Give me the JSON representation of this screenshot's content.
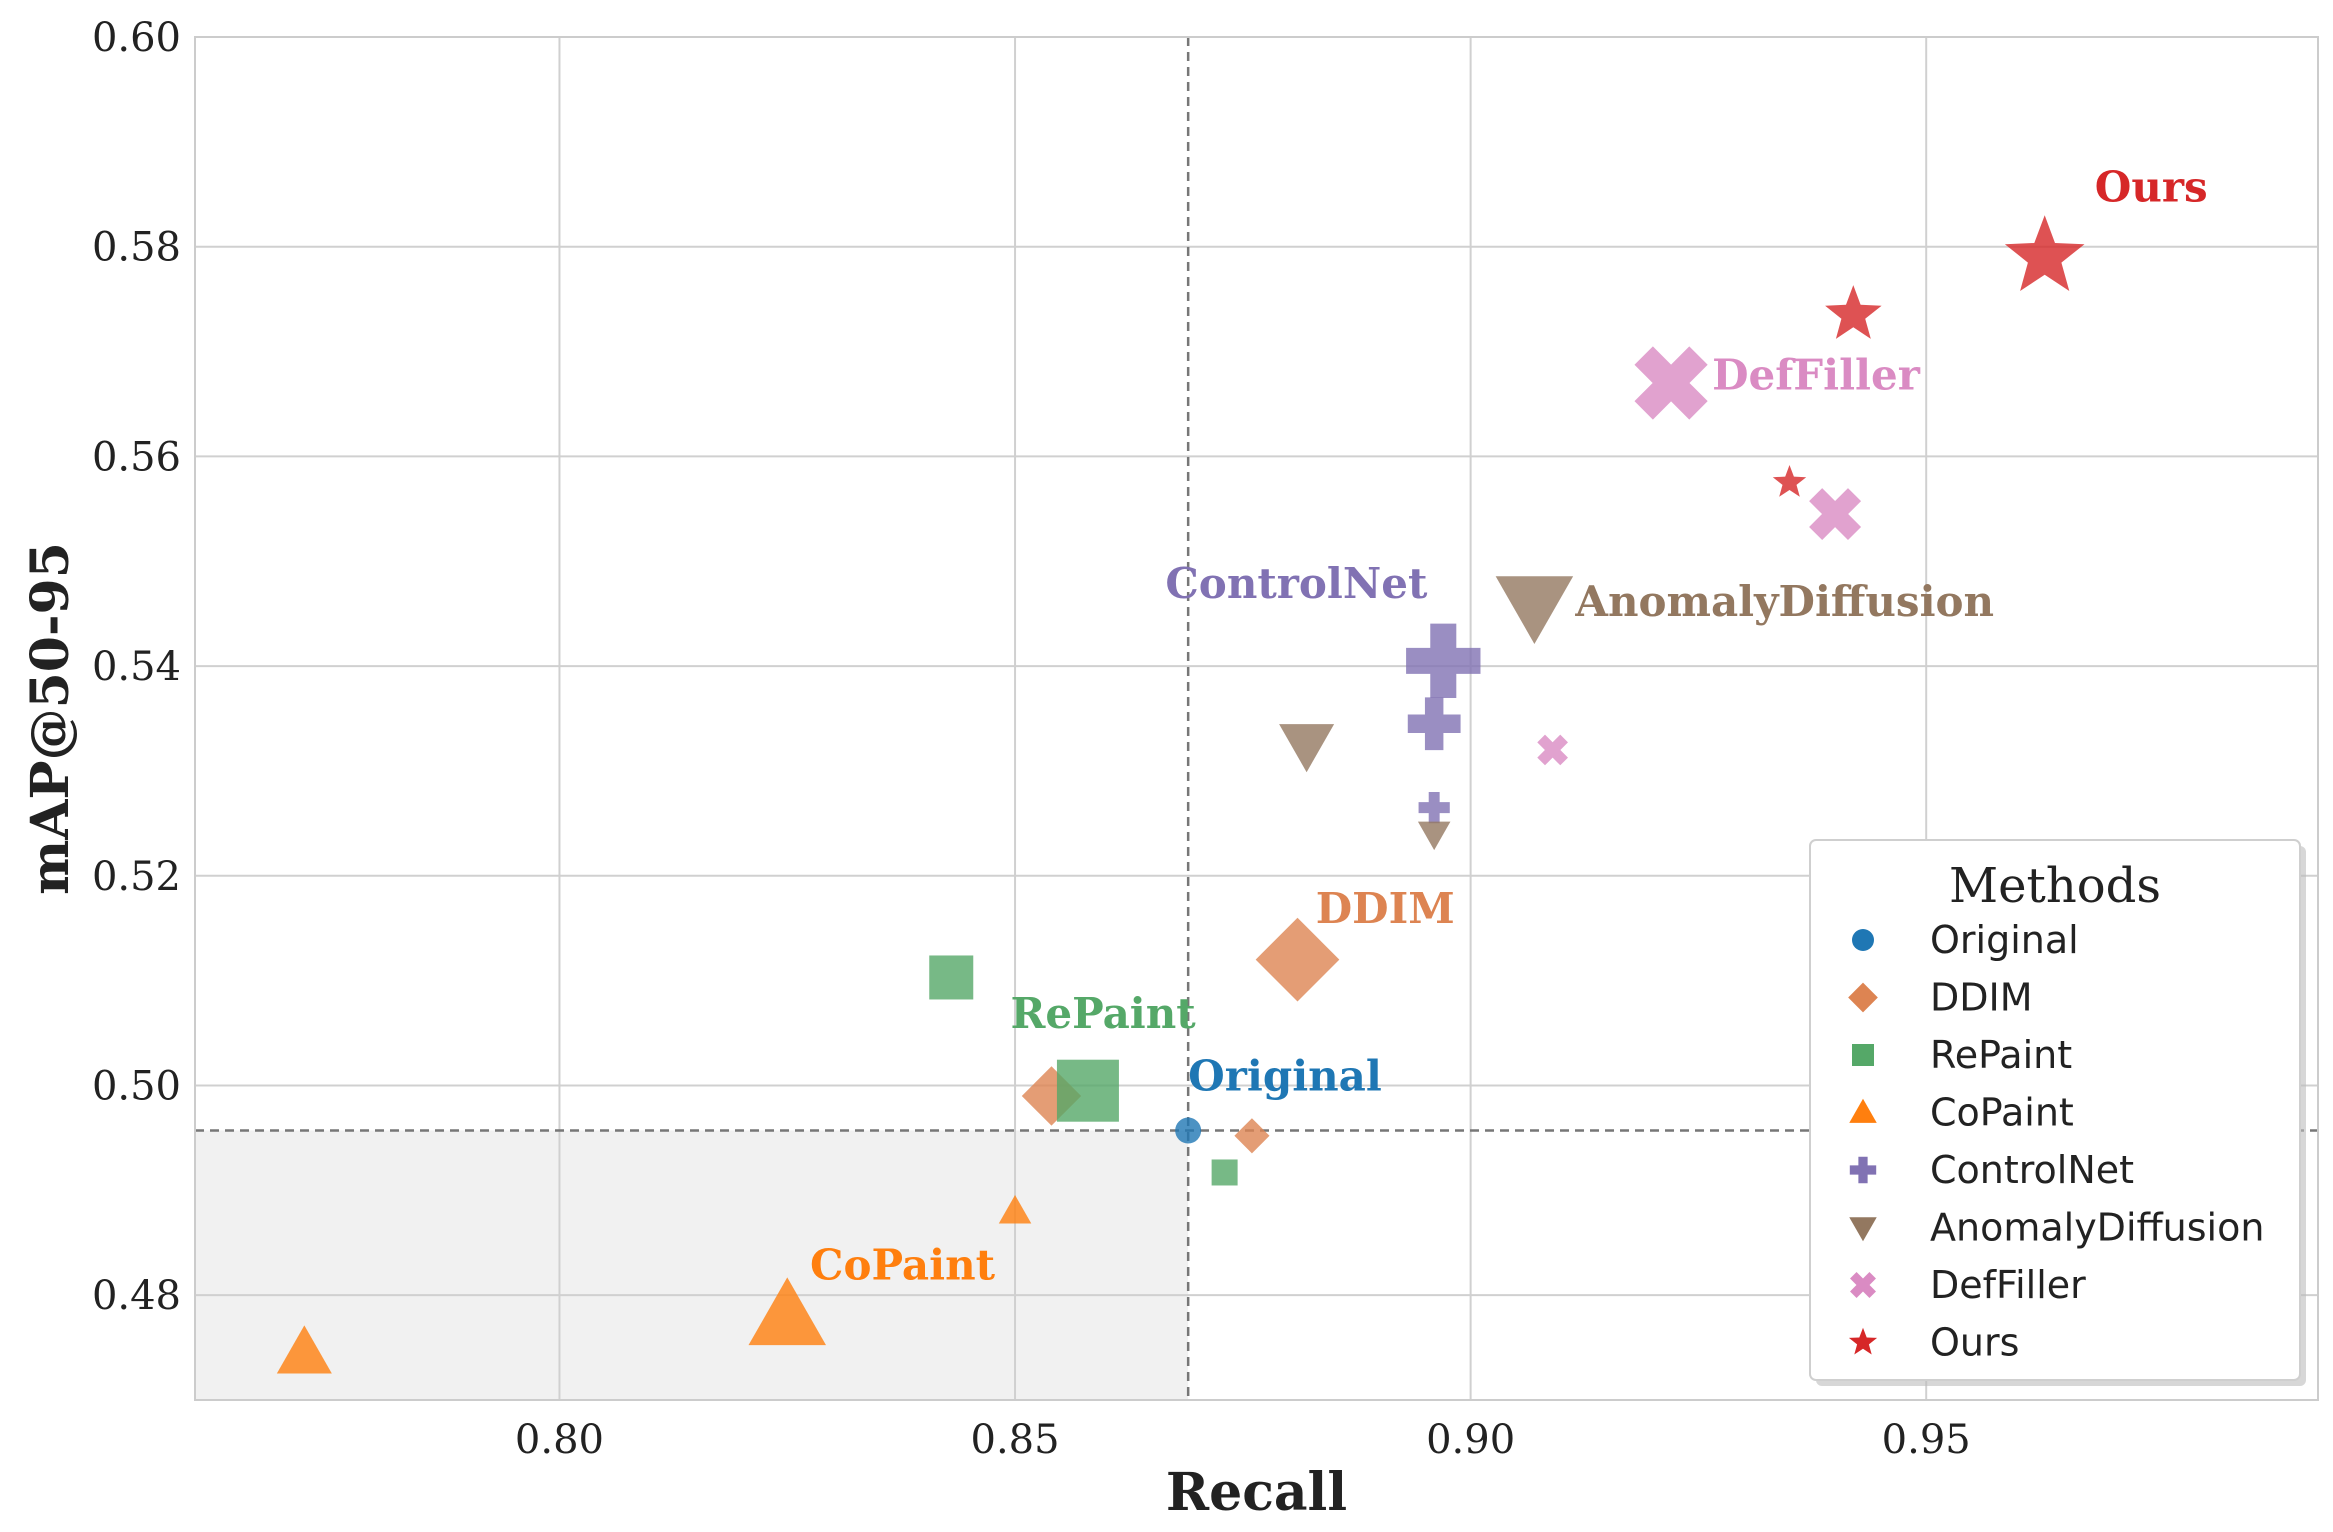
{
  "chart_data": {
    "type": "scatter",
    "xlabel": "Recall",
    "ylabel": "mAP@50-95",
    "xlim": [
      0.76,
      0.993
    ],
    "ylim": [
      0.47,
      0.6
    ],
    "xticks": [
      0.8,
      0.85,
      0.9,
      0.95
    ],
    "yticks": [
      0.48,
      0.5,
      0.52,
      0.54,
      0.56,
      0.58,
      0.6
    ],
    "x_tick_labels": [
      "0.80",
      "0.85",
      "0.90",
      "0.95"
    ],
    "y_tick_labels": [
      "0.48",
      "0.50",
      "0.52",
      "0.54",
      "0.56",
      "0.58",
      "0.60"
    ],
    "grid": true,
    "reference_lines": {
      "x": 0.869,
      "y": 0.4957
    },
    "shaded_region": "below-left of reference point",
    "legend": {
      "title": "Methods",
      "position": "lower-right"
    },
    "series": [
      {
        "name": "Original",
        "marker": "circle",
        "color": "#1f77b4",
        "points": [
          {
            "x": 0.869,
            "y": 0.4957,
            "size": "small"
          }
        ]
      },
      {
        "name": "DDIM",
        "marker": "diamond",
        "color": "#dd8452",
        "points": [
          {
            "x": 0.854,
            "y": 0.499,
            "size": "medium"
          },
          {
            "x": 0.876,
            "y": 0.4952,
            "size": "small"
          },
          {
            "x": 0.881,
            "y": 0.512,
            "size": "large"
          }
        ]
      },
      {
        "name": "RePaint",
        "marker": "square",
        "color": "#55a868",
        "points": [
          {
            "x": 0.843,
            "y": 0.5103,
            "size": "medium"
          },
          {
            "x": 0.858,
            "y": 0.4995,
            "size": "large"
          },
          {
            "x": 0.873,
            "y": 0.4917,
            "size": "small"
          }
        ]
      },
      {
        "name": "CoPaint",
        "marker": "triangle-up",
        "color": "#ff7f0e",
        "points": [
          {
            "x": 0.772,
            "y": 0.4745,
            "size": "medium"
          },
          {
            "x": 0.825,
            "y": 0.478,
            "size": "large"
          },
          {
            "x": 0.85,
            "y": 0.488,
            "size": "small"
          }
        ]
      },
      {
        "name": "ControlNet",
        "marker": "plus",
        "color": "#8172b3",
        "points": [
          {
            "x": 0.896,
            "y": 0.5265,
            "size": "small"
          },
          {
            "x": 0.896,
            "y": 0.5345,
            "size": "medium"
          },
          {
            "x": 0.897,
            "y": 0.5405,
            "size": "large"
          }
        ]
      },
      {
        "name": "AnomalyDiffusion",
        "marker": "triangle-down",
        "color": "#937860",
        "points": [
          {
            "x": 0.896,
            "y": 0.524,
            "size": "small"
          },
          {
            "x": 0.882,
            "y": 0.5325,
            "size": "medium"
          },
          {
            "x": 0.907,
            "y": 0.5458,
            "size": "large"
          }
        ]
      },
      {
        "name": "DefFiller",
        "marker": "x",
        "color": "#da8bc3",
        "points": [
          {
            "x": 0.909,
            "y": 0.532,
            "size": "small"
          },
          {
            "x": 0.94,
            "y": 0.5545,
            "size": "medium"
          },
          {
            "x": 0.922,
            "y": 0.567,
            "size": "large"
          }
        ]
      },
      {
        "name": "Ours",
        "marker": "star",
        "color": "#d62728",
        "points": [
          {
            "x": 0.935,
            "y": 0.5575,
            "size": "small"
          },
          {
            "x": 0.942,
            "y": 0.5735,
            "size": "medium"
          },
          {
            "x": 0.963,
            "y": 0.579,
            "size": "large"
          }
        ]
      }
    ],
    "annotations": [
      {
        "text": "Original",
        "x": 0.869,
        "y": 0.4995,
        "color": "#1f77b4"
      },
      {
        "text": "DDIM",
        "x": 0.883,
        "y": 0.5155,
        "color": "#dd8452"
      },
      {
        "text": "RePaint",
        "x": 0.8495,
        "y": 0.5055,
        "color": "#55a868"
      },
      {
        "text": "CoPaint",
        "x": 0.8275,
        "y": 0.4815,
        "color": "#ff7f0e"
      },
      {
        "text": "ControlNet",
        "x": 0.8665,
        "y": 0.5465,
        "color": "#8172b3"
      },
      {
        "text": "AnomalyDiffusion",
        "x": 0.9115,
        "y": 0.5448,
        "color": "#937860"
      },
      {
        "text": "DefFiller",
        "x": 0.9265,
        "y": 0.5664,
        "color": "#da8bc3"
      },
      {
        "text": "Ours",
        "x": 0.9685,
        "y": 0.5843,
        "color": "#d62728"
      }
    ]
  }
}
